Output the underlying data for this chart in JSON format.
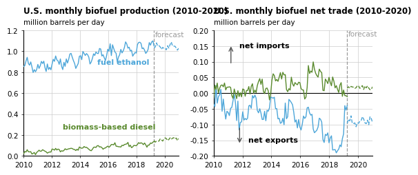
{
  "title_left": "U.S. monthly biofuel production (2010-2020)",
  "title_right": "U.S. monthly biofuel net trade (2010-2020)",
  "ylabel": "million barrels per day",
  "forecast_label": "forecast",
  "forecast_year": 2019.25,
  "left_ylim": [
    0.0,
    1.2
  ],
  "left_yticks": [
    0.0,
    0.2,
    0.4,
    0.6,
    0.8,
    1.0,
    1.2
  ],
  "right_ylim": [
    -0.2,
    0.2
  ],
  "right_yticks": [
    -0.2,
    -0.15,
    -0.1,
    -0.05,
    0.0,
    0.05,
    0.1,
    0.15,
    0.2
  ],
  "xlim": [
    2010.0,
    2021.0
  ],
  "xticks": [
    2010,
    2012,
    2014,
    2016,
    2018,
    2020
  ],
  "ethanol_color": "#4da6d9",
  "biodiesel_color": "#5a8a2e",
  "label_ethanol": "fuel ethanol",
  "label_biodiesel": "biomass-based diesel",
  "label_net_imports": "net imports",
  "label_net_exports": "net exports",
  "title_fontsize": 8.5,
  "ylabel_fontsize": 7.5,
  "tick_fontsize": 7.5,
  "annotation_fontsize": 8.0,
  "series_label_fontsize": 8.0,
  "background_color": "#ffffff",
  "grid_color": "#cccccc",
  "forecast_color": "#999999"
}
